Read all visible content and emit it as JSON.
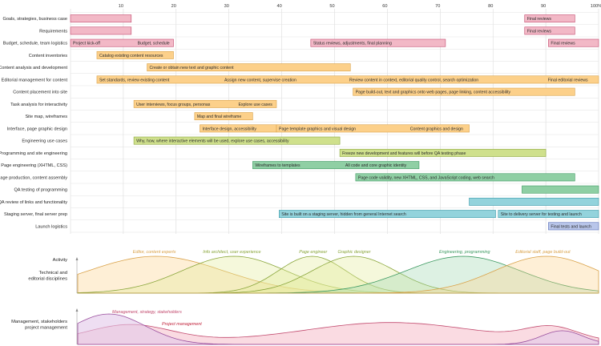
{
  "chart_data": {
    "type": "gantt",
    "x_ticks": [
      "10",
      "20",
      "30",
      "40",
      "50",
      "60",
      "70",
      "80",
      "90",
      "100%"
    ],
    "xlim": [
      0,
      100
    ],
    "grid": true,
    "colors": {
      "pink": "#f2b8c6",
      "orange": "#fcd08a",
      "green": "#cfe08c",
      "teal": "#8fcfa4",
      "cyan": "#93d3dc",
      "blue": "#b9c6ea",
      "pink_line": "#c24a6e",
      "orange_line": "#d9a24a",
      "green_line": "#8aa63c",
      "teal_line": "#3e9a62",
      "cyan_line": "#3a9aa8",
      "blue_line": "#5a6fb8"
    },
    "rows": [
      {
        "label": "Goals, strategies, business case",
        "bars": [
          {
            "start": 0,
            "end": 11.5,
            "color": "pink",
            "labels": []
          },
          {
            "start": 86,
            "end": 95.5,
            "color": "pink",
            "labels": [
              "Final reviews"
            ]
          }
        ]
      },
      {
        "label": "Requirements",
        "bars": [
          {
            "start": 0,
            "end": 11.5,
            "color": "pink",
            "labels": []
          },
          {
            "start": 86,
            "end": 95.5,
            "color": "pink",
            "labels": [
              "Final reviews"
            ]
          }
        ]
      },
      {
        "label": "Budget, schedule, team logistics",
        "bars": [
          {
            "start": 0,
            "end": 19.5,
            "color": "pink",
            "labels": [
              "Project kick-off",
              "Budget, schedule"
            ]
          },
          {
            "start": 45.5,
            "end": 71,
            "color": "pink",
            "labels": [
              "Status reviews, adjustments, final planning"
            ]
          },
          {
            "start": 90.5,
            "end": 100,
            "color": "pink",
            "labels": [
              "Final reviews"
            ]
          }
        ]
      },
      {
        "label": "Content inventories",
        "bars": [
          {
            "start": 5,
            "end": 19.5,
            "color": "orange",
            "labels": [
              "Catalog existing content resources"
            ]
          }
        ]
      },
      {
        "label": "Content analysis and development",
        "bars": [
          {
            "start": 14.5,
            "end": 53,
            "color": "orange",
            "labels": [
              "Create or obtain new text and graphic content"
            ]
          }
        ]
      },
      {
        "label": "Editorial management for content",
        "bars": [
          {
            "start": 5,
            "end": 100,
            "color": "orange",
            "labels": [
              "Set standards, review existing content",
              "Assign new content, supervise creation",
              "Review content in context, editorial quality control, search optimization",
              "Final editorial reviews"
            ]
          }
        ]
      },
      {
        "label": "Content placement into site",
        "bars": [
          {
            "start": 53.5,
            "end": 95.5,
            "color": "orange",
            "labels": [
              "Page build-out, text and graphics onto web pages, page linking, content accessibility"
            ]
          }
        ]
      },
      {
        "label": "Task analysis for interactivity",
        "bars": [
          {
            "start": 12,
            "end": 39,
            "color": "orange",
            "labels": [
              "User interviews, focus groups, personas",
              "Explore use cases"
            ]
          }
        ]
      },
      {
        "label": "Site map, wireframes",
        "bars": [
          {
            "start": 23.5,
            "end": 34.5,
            "color": "orange",
            "labels": [
              "Map and final wireframe"
            ]
          }
        ]
      },
      {
        "label": "Interface, page graphic design",
        "bars": [
          {
            "start": 24.5,
            "end": 39,
            "color": "orange",
            "labels": [
              "Interface design, accessibility"
            ]
          },
          {
            "start": 39,
            "end": 75.5,
            "color": "orange",
            "labels": [
              "Page template graphics and visual design",
              "Content graphics and design"
            ]
          }
        ]
      },
      {
        "label": "Engineering use cases",
        "bars": [
          {
            "start": 12,
            "end": 51,
            "color": "green",
            "labels": [
              "Why, how, where interactive elements will be used, explore use cases, accessibility"
            ]
          }
        ]
      },
      {
        "label": "Programming and site engineering",
        "bars": [
          {
            "start": 51,
            "end": 90,
            "color": "green",
            "labels": [
              "Freeze new development and features will before QA testing phase"
            ]
          }
        ]
      },
      {
        "label": "Page engineering (XHTML, CSS)",
        "bars": [
          {
            "start": 34.5,
            "end": 66,
            "color": "teal",
            "labels": [
              "Wireframes to templates",
              "All code and core graphic identity"
            ]
          }
        ]
      },
      {
        "label": "Page production, content assembly",
        "bars": [
          {
            "start": 54,
            "end": 95.5,
            "color": "teal",
            "labels": [
              "Page code validity, new XHTML, CSS, and JavaScript coding, web search"
            ]
          }
        ]
      },
      {
        "label": "QA testing of programming",
        "bars": [
          {
            "start": 85.5,
            "end": 100,
            "color": "teal",
            "labels": []
          }
        ]
      },
      {
        "label": "QA review of links and functionality",
        "bars": [
          {
            "start": 75.5,
            "end": 100,
            "color": "cyan",
            "labels": []
          }
        ]
      },
      {
        "label": "Staging server, final server prep",
        "bars": [
          {
            "start": 39.5,
            "end": 80.5,
            "color": "cyan",
            "labels": [
              "Site is built on a staging server, hidden from general Internet search"
            ]
          },
          {
            "start": 81,
            "end": 100,
            "color": "cyan",
            "labels": [
              "Site to delivery server for testing and launch"
            ]
          }
        ]
      },
      {
        "label": "Launch logistics",
        "bars": [
          {
            "start": 90.5,
            "end": 100,
            "color": "blue",
            "labels": [
              "Final tests and launch"
            ]
          }
        ]
      }
    ],
    "activity": {
      "label": "Activity",
      "technical_label": "Technical and\neditorial disciplines",
      "roles": [
        {
          "name": "Editor, content experts",
          "color": "orange_line",
          "peak": 15,
          "sigma": 13
        },
        {
          "name": "Info architect, user experience",
          "color": "green_line",
          "peak": 30,
          "sigma": 10
        },
        {
          "name": "Page engineer",
          "color": "green_line",
          "peak": 45,
          "sigma": 6.5
        },
        {
          "name": "Graphic designer",
          "color": "green_line",
          "peak": 53,
          "sigma": 8
        },
        {
          "name": "Engineering, programming",
          "color": "teal_line",
          "peak": 74,
          "sigma": 11
        },
        {
          "name": "Editorial staff, page build-out",
          "color": "orange_line",
          "peak": 90,
          "sigma": 10
        }
      ],
      "management_label": "Management, stakeholders\nproject management",
      "mgmt_roles": [
        {
          "name": "Management, strategy, stakeholders",
          "color": "pink_line"
        },
        {
          "name": "Project management",
          "color": "pink_line"
        }
      ]
    }
  }
}
